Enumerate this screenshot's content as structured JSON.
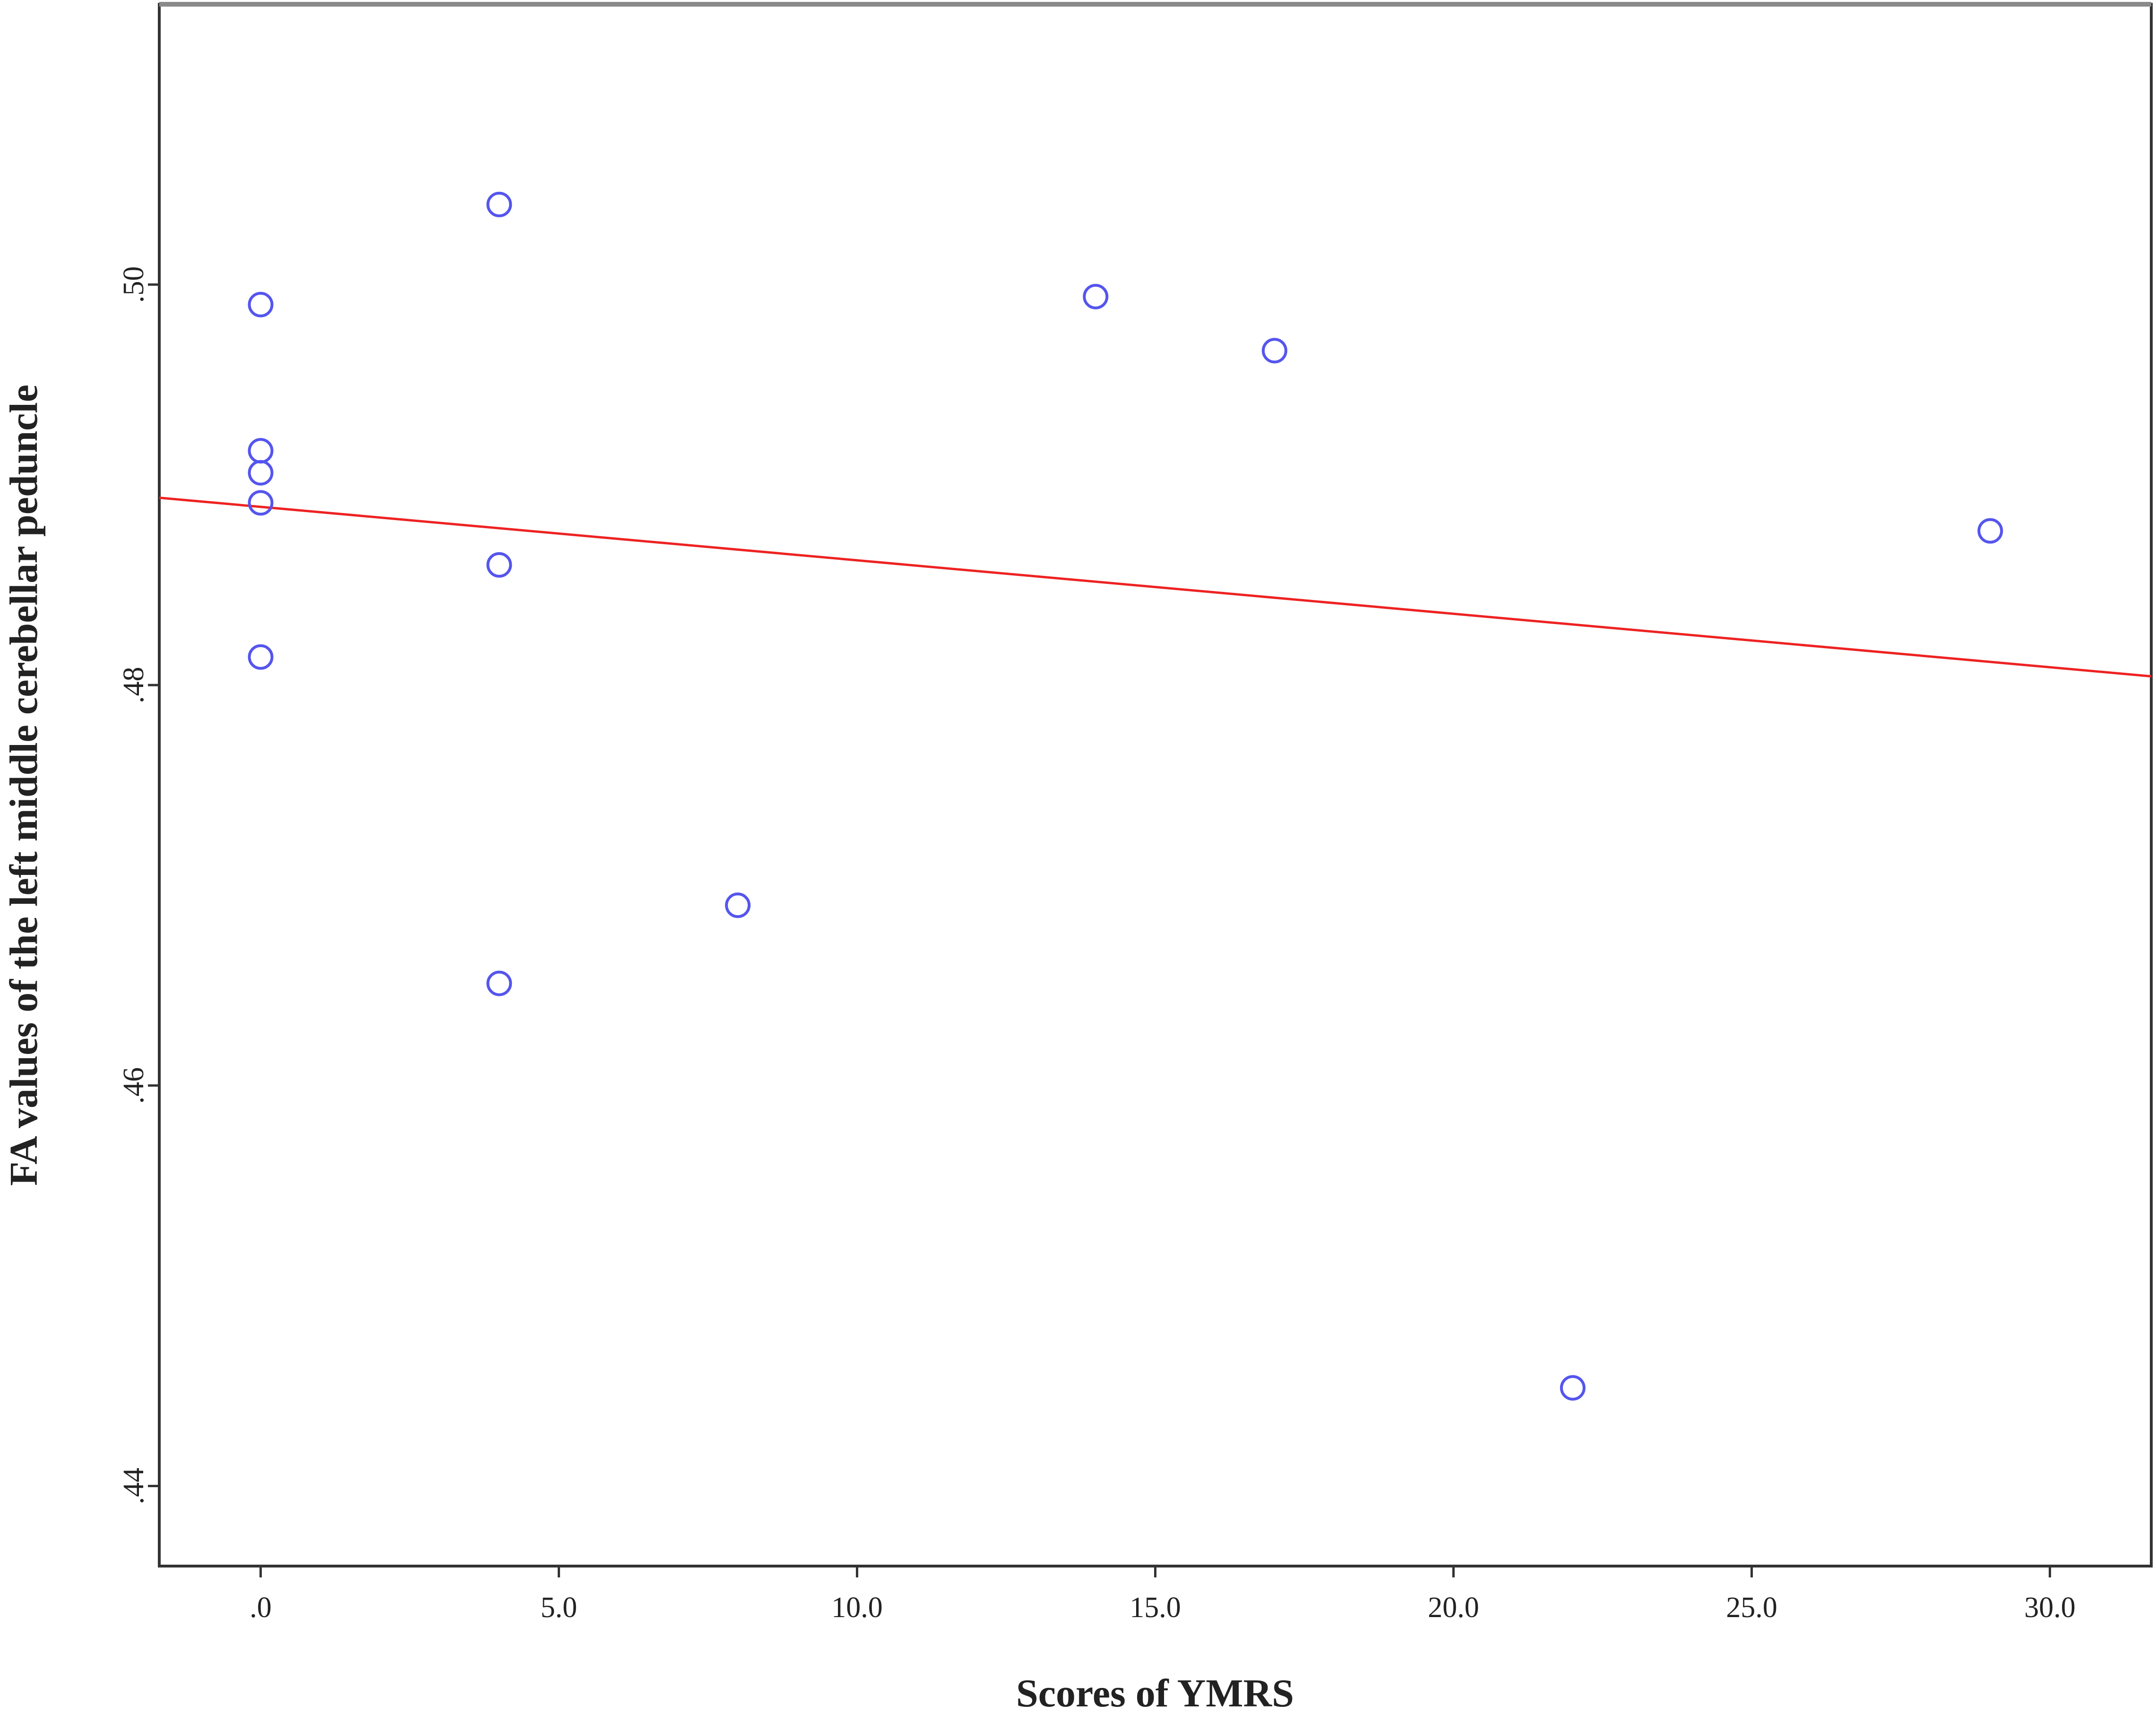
{
  "chart_data": {
    "type": "scatter",
    "xlabel": "Scores of YMRS",
    "ylabel": "FA values of the left middle cerebellar peduncle",
    "xlim": [
      -1.7,
      31.7
    ],
    "ylim": [
      0.436,
      0.514
    ],
    "x_ticks": [
      0,
      5,
      10,
      15,
      20,
      25,
      30
    ],
    "x_tick_labels": [
      ".0",
      "5.0",
      "10.0",
      "15.0",
      "20.0",
      "25.0",
      "30.0"
    ],
    "y_ticks": [
      0.44,
      0.46,
      0.48,
      0.5
    ],
    "y_tick_labels": [
      ".44",
      ".46",
      ".48",
      ".50"
    ],
    "grid": false,
    "marker_color": "#5555ee",
    "fit_line_color": "#ee2222",
    "points": [
      {
        "x": 0,
        "y": 0.499
      },
      {
        "x": 0,
        "y": 0.4917
      },
      {
        "x": 0,
        "y": 0.4906
      },
      {
        "x": 0,
        "y": 0.4891
      },
      {
        "x": 0,
        "y": 0.4814
      },
      {
        "x": 4,
        "y": 0.504
      },
      {
        "x": 4,
        "y": 0.486
      },
      {
        "x": 4,
        "y": 0.4651
      },
      {
        "x": 8,
        "y": 0.469
      },
      {
        "x": 14,
        "y": 0.4994
      },
      {
        "x": 17,
        "y": 0.4967
      },
      {
        "x": 22,
        "y": 0.4449
      },
      {
        "x": 29,
        "y": 0.4877
      }
    ],
    "fit_line": {
      "intercept": 0.4889,
      "slope": -0.000267
    }
  }
}
